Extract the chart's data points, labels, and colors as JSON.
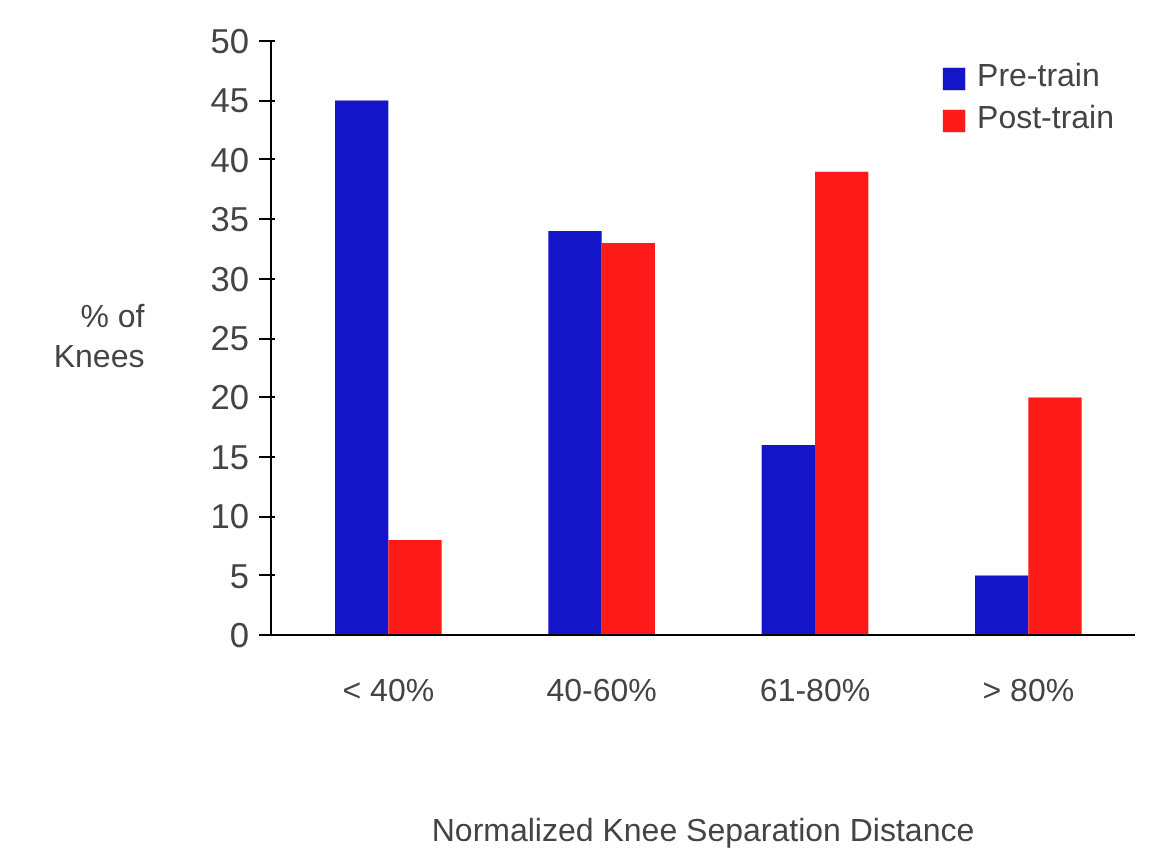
{
  "chart_data": {
    "type": "bar",
    "xlabel": "Normalized Knee Separation Distance",
    "ylabel": "% of\nKnees",
    "categories": [
      "< 40%",
      "40-60%",
      "61-80%",
      "> 80%"
    ],
    "series": [
      {
        "name": "Pre-train",
        "color": "#1414c8",
        "values": [
          45,
          34,
          16,
          5
        ]
      },
      {
        "name": "Post-train",
        "color": "#ff1a1a",
        "values": [
          8,
          33,
          39,
          20
        ]
      }
    ],
    "ylim": [
      0,
      50
    ],
    "yticks": [
      0,
      5,
      10,
      15,
      20,
      25,
      30,
      35,
      40,
      45,
      50
    ],
    "grid": false,
    "legend": "top right"
  }
}
